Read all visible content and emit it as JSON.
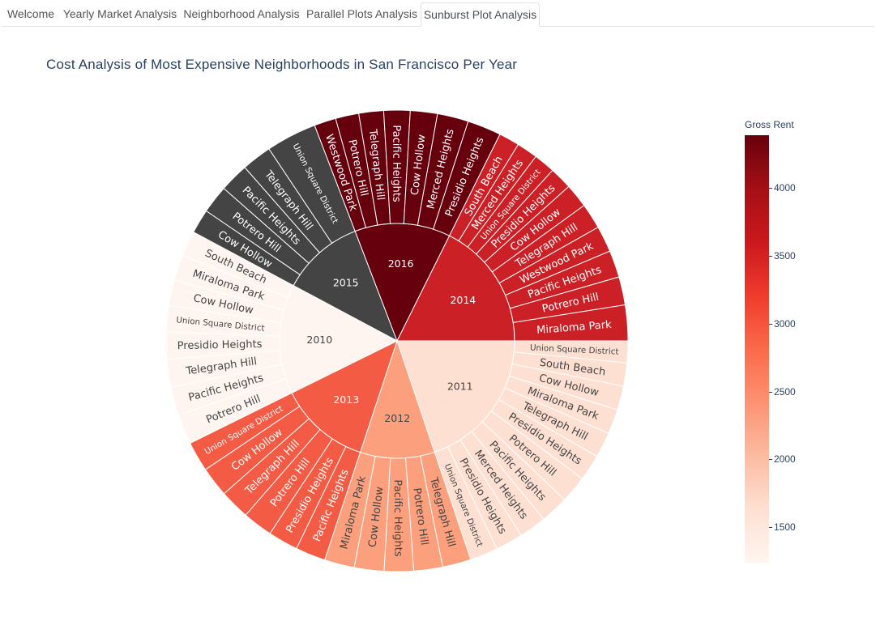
{
  "tabs": [
    {
      "label": "Welcome",
      "active": false
    },
    {
      "label": "Yearly Market Analysis",
      "active": false
    },
    {
      "label": "Neighborhood Analysis",
      "active": false
    },
    {
      "label": "Parallel Plots Analysis",
      "active": false
    },
    {
      "label": "Sunburst Plot Analysis",
      "active": true
    }
  ],
  "chart_data": {
    "type": "sunburst",
    "title": "Cost Analysis of Most Expensive Neighborhoods in San Francisco Per Year",
    "colorbar": {
      "title": "Gross Rent",
      "range": [
        1239,
        4390
      ],
      "ticks": [
        1500,
        2000,
        2500,
        3000,
        3500,
        4000
      ],
      "colors": [
        "#fff5f0",
        "#fee0d2",
        "#fcbba1",
        "#fc9272",
        "#fb6a4a",
        "#ef3b2c",
        "#cb181d",
        "#a50f15",
        "#67000d"
      ]
    },
    "center_color": "#444444",
    "years": [
      {
        "year": "2011",
        "gross_rent": 1530,
        "color": "#fee0d2",
        "children": [
          {
            "name": "Union Square District",
            "value": 5.8
          },
          {
            "name": "South Beach",
            "value": 6.2
          },
          {
            "name": "Cow Hollow",
            "value": 6.4
          },
          {
            "name": "Miraloma Park",
            "value": 6.6
          },
          {
            "name": "Telegraph Hill",
            "value": 6.8
          },
          {
            "name": "Presidio Heights",
            "value": 7.0
          },
          {
            "name": "Potrero Hill",
            "value": 7.2
          },
          {
            "name": "Pacific Heights",
            "value": 7.5
          },
          {
            "name": "Merced Heights",
            "value": 7.3
          },
          {
            "name": "Presidio Heights",
            "value": 7.3
          },
          {
            "name": "Union Square District",
            "value": 7.4
          }
        ]
      },
      {
        "year": "2012",
        "gross_rent": 2324,
        "color": "#fb9f7d",
        "children": [
          {
            "name": "Telegraph Hill",
            "value": 7.6
          },
          {
            "name": "Potrero Hill",
            "value": 7.7
          },
          {
            "name": "Pacific Heights",
            "value": 7.8
          },
          {
            "name": "Cow Hollow",
            "value": 7.9
          },
          {
            "name": "Miraloma Park",
            "value": 8.0
          }
        ]
      },
      {
        "year": "2013",
        "gross_rent": 2971,
        "color": "#f45b44",
        "children": [
          {
            "name": "Pacific Heights",
            "value": 8.0
          },
          {
            "name": "Presidio Heights",
            "value": 8.0
          },
          {
            "name": "Potrero Hill",
            "value": 8.0
          },
          {
            "name": "Telegraph Hill",
            "value": 8.0
          },
          {
            "name": "Cow Hollow",
            "value": 8.0
          },
          {
            "name": "Union Square District",
            "value": 8.0
          }
        ]
      },
      {
        "year": "2010",
        "gross_rent": 1239,
        "color": "#fff5f0",
        "children": [
          {
            "name": "Potrero Hill",
            "value": 8.0
          },
          {
            "name": "Pacific Heights",
            "value": 7.6
          },
          {
            "name": "Telegraph Hill",
            "value": 7.4
          },
          {
            "name": "Presidio Heights",
            "value": 7.2
          },
          {
            "name": "Union Square District",
            "value": 7.0
          },
          {
            "name": "Cow Hollow",
            "value": 6.8
          },
          {
            "name": "Miraloma Park",
            "value": 6.8
          },
          {
            "name": "South Beach",
            "value": 6.8
          }
        ]
      },
      {
        "year": "2015",
        "gross_rent": 3739,
        "color": "#444444",
        "children": [
          {
            "name": "Cow Hollow",
            "value": 6.5
          },
          {
            "name": "Potrero Hill",
            "value": 7.5
          },
          {
            "name": "Pacific Heights",
            "value": 7.8
          },
          {
            "name": "Telegraph Hill",
            "value": 8.0
          },
          {
            "name": "Union Square District",
            "value": 13.5
          }
        ]
      },
      {
        "year": "2016",
        "gross_rent": 4390,
        "color": "#67000d",
        "children": [
          {
            "name": "Westwood Park",
            "value": 5.8
          },
          {
            "name": "Potrero Hill",
            "value": 6.2
          },
          {
            "name": "Telegraph Hill",
            "value": 6.6
          },
          {
            "name": "Pacific Heights",
            "value": 7.0
          },
          {
            "name": "Cow Hollow",
            "value": 7.2
          },
          {
            "name": "Merced Heights",
            "value": 8.3
          },
          {
            "name": "Presidio Heights",
            "value": 9.0
          }
        ]
      },
      {
        "year": "2014",
        "gross_rent": 3528,
        "color": "#cb2026",
        "children": [
          {
            "name": "South Beach",
            "value": 5.5
          },
          {
            "name": "Merced Heights",
            "value": 5.6
          },
          {
            "name": "Union Square District",
            "value": 5.7
          },
          {
            "name": "Presidio Heights",
            "value": 6.0
          },
          {
            "name": "Cow Hollow",
            "value": 6.4
          },
          {
            "name": "Telegraph Hill",
            "value": 6.8
          },
          {
            "name": "Westwood Park",
            "value": 7.0
          },
          {
            "name": "Pacific Heights",
            "value": 7.2
          },
          {
            "name": "Potrero Hill",
            "value": 7.5
          },
          {
            "name": "Miraloma Park",
            "value": 9.5
          }
        ]
      }
    ]
  }
}
